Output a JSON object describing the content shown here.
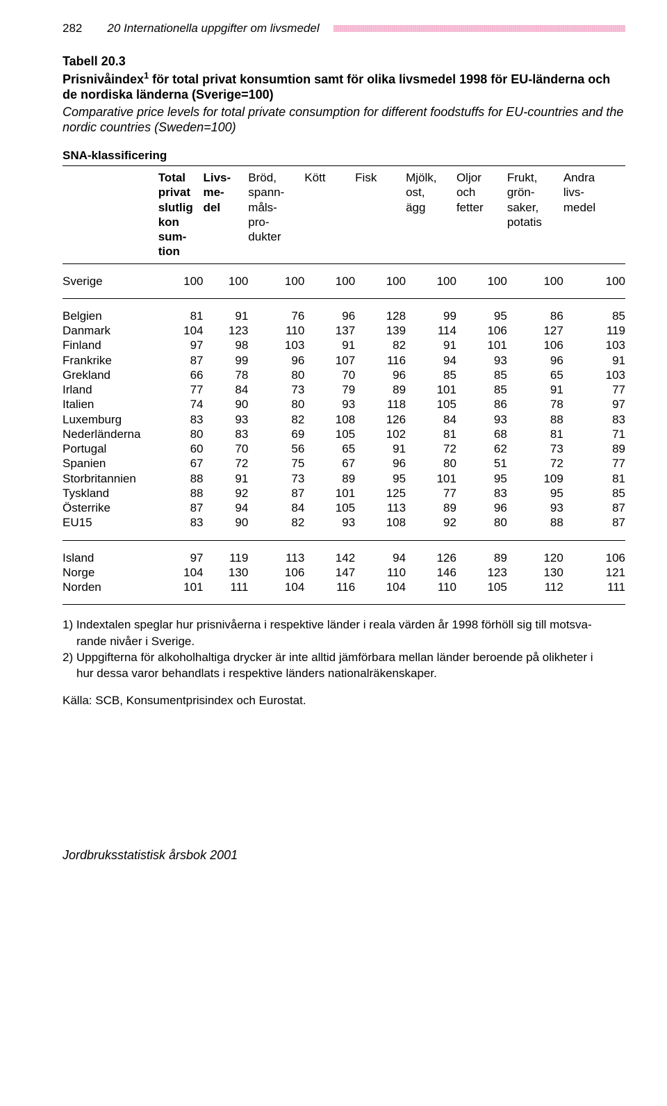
{
  "page": {
    "number": "282",
    "chapter": "20   Internationella uppgifter om livsmedel"
  },
  "table": {
    "label": "Tabell 20.3",
    "title_sv": "Prisnivåindex¹ för total privat konsumtion samt för olika livsmedel 1998 för EU-länderna och de nordiska länderna (Sverige=100)",
    "title_en": "Comparative price levels for total private consumption for different foodstuffs for EU-countries and the nordic countries (Sweden=100)",
    "sna": "SNA-klassificering",
    "columns_text": [
      "",
      "Total\nprivat\nslutlig\nkon\nsum-\ntion",
      "Livs-\nme-\ndel",
      "Bröd,\nspann-\nmåls-\npro-\ndukter",
      "Kött",
      "Fisk",
      "Mjölk,\nost,\nägg",
      "Oljor\noch\nfetter",
      "Frukt,\ngrön-\nsaker,\npotatis",
      "Andra\nlivs-\nmedel"
    ],
    "columns_bold_until": [
      0,
      999,
      999,
      0,
      0,
      0,
      0,
      0,
      0,
      0
    ],
    "col_widths_pct": [
      17,
      8,
      8,
      10,
      9,
      9,
      9,
      9,
      10,
      11
    ],
    "groups": [
      {
        "rows": [
          {
            "label": "Sverige",
            "v": [
              100,
              100,
              100,
              100,
              100,
              100,
              100,
              100,
              100
            ]
          }
        ]
      },
      {
        "rows": [
          {
            "label": "Belgien",
            "v": [
              81,
              91,
              76,
              96,
              128,
              99,
              95,
              86,
              85
            ]
          },
          {
            "label": "Danmark",
            "v": [
              104,
              123,
              110,
              137,
              139,
              114,
              106,
              127,
              119
            ]
          },
          {
            "label": "Finland",
            "v": [
              97,
              98,
              103,
              91,
              82,
              91,
              101,
              106,
              103
            ]
          },
          {
            "label": "Frankrike",
            "v": [
              87,
              99,
              96,
              107,
              116,
              94,
              93,
              96,
              91
            ]
          },
          {
            "label": "Grekland",
            "v": [
              66,
              78,
              80,
              70,
              96,
              85,
              85,
              65,
              103
            ]
          },
          {
            "label": "Irland",
            "v": [
              77,
              84,
              73,
              79,
              89,
              101,
              85,
              91,
              77
            ]
          },
          {
            "label": "Italien",
            "v": [
              74,
              90,
              80,
              93,
              118,
              105,
              86,
              78,
              97
            ]
          },
          {
            "label": "Luxemburg",
            "v": [
              83,
              93,
              82,
              108,
              126,
              84,
              93,
              88,
              83
            ]
          },
          {
            "label": "Nederländerna",
            "v": [
              80,
              83,
              69,
              105,
              102,
              81,
              68,
              81,
              71
            ]
          },
          {
            "label": "Portugal",
            "v": [
              60,
              70,
              56,
              65,
              91,
              72,
              62,
              73,
              89
            ]
          },
          {
            "label": "Spanien",
            "v": [
              67,
              72,
              75,
              67,
              96,
              80,
              51,
              72,
              77
            ]
          },
          {
            "label": "Storbritannien",
            "v": [
              88,
              91,
              73,
              89,
              95,
              101,
              95,
              109,
              81
            ]
          },
          {
            "label": "Tyskland",
            "v": [
              88,
              92,
              87,
              101,
              125,
              77,
              83,
              95,
              85
            ]
          },
          {
            "label": "Österrike",
            "v": [
              87,
              94,
              84,
              105,
              113,
              89,
              96,
              93,
              87
            ]
          },
          {
            "label": "EU15",
            "v": [
              83,
              90,
              82,
              93,
              108,
              92,
              80,
              88,
              87
            ]
          }
        ]
      },
      {
        "rows": [
          {
            "label": "Island",
            "v": [
              97,
              119,
              113,
              142,
              94,
              126,
              89,
              120,
              106
            ]
          },
          {
            "label": "Norge",
            "v": [
              104,
              130,
              106,
              147,
              110,
              146,
              123,
              130,
              121
            ]
          },
          {
            "label": "Norden",
            "v": [
              101,
              111,
              104,
              116,
              104,
              110,
              105,
              112,
              111
            ]
          }
        ]
      }
    ]
  },
  "footnotes": {
    "n1a": "1) Indextalen speglar hur prisnivåerna i respektive länder i reala värden år 1998 förhöll sig till motsva-",
    "n1b": "rande nivåer i Sverige.",
    "n2a": "2) Uppgifterna för alkoholhaltiga drycker är inte alltid jämförbara mellan länder beroende på olikheter i",
    "n2b": "hur dessa varor behandlats i respektive länders nationalräkenskaper."
  },
  "source": "Källa: SCB, Konsumentprisindex och Eurostat.",
  "footer": "Jordbruksstatistisk årsbok 2001"
}
